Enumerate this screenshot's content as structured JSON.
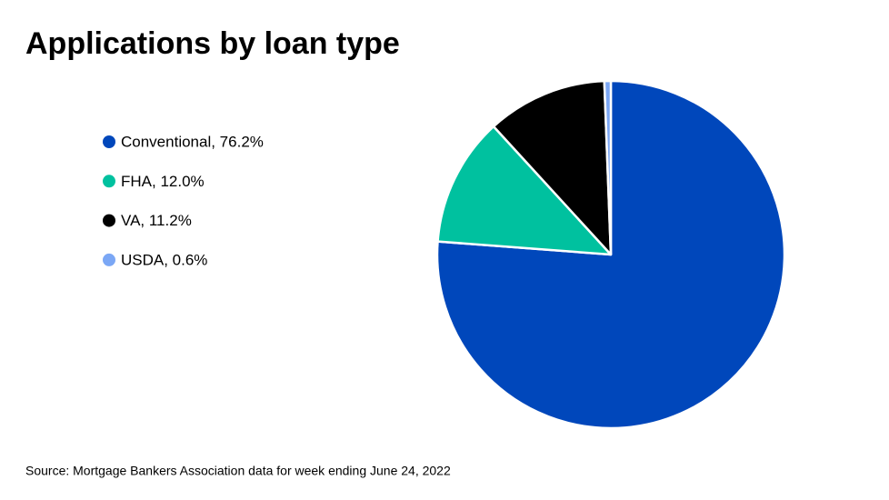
{
  "chart_data": {
    "type": "pie",
    "title": "Applications by loan type",
    "categories": [
      "Conventional, 76.2%",
      "FHA, 12.0%",
      "VA, 11.2%",
      "USDA, 0.6%"
    ],
    "values": [
      76.2,
      12.0,
      11.2,
      0.6
    ],
    "colors": [
      "#0047bb",
      "#00c19f",
      "#000000",
      "#7ba7f5"
    ],
    "legend": "left",
    "source": "Source: Mortgage Bankers Association data for week ending June 24, 2022"
  }
}
